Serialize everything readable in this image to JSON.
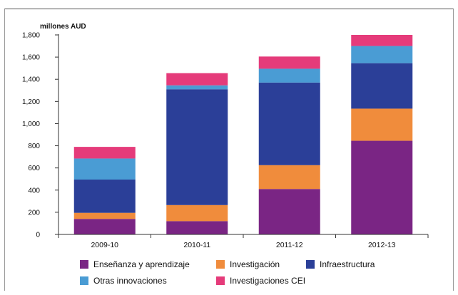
{
  "chart_data": {
    "type": "bar",
    "stacked": true,
    "unit_label": "millones AUD",
    "categories": [
      "2009-10",
      "2010-11",
      "2011-12",
      "2012-13"
    ],
    "series": [
      {
        "name": "Enseñanza y aprendizaje",
        "color": "#7a2584",
        "values": [
          140,
          120,
          410,
          845
        ]
      },
      {
        "name": "Investigación",
        "color": "#f08c3c",
        "values": [
          55,
          145,
          215,
          290
        ]
      },
      {
        "name": "Infraestructura",
        "color": "#2b3f98",
        "values": [
          300,
          1045,
          745,
          410
        ]
      },
      {
        "name": "Otras innovaciones",
        "color": "#4a9cd4",
        "values": [
          190,
          35,
          125,
          155
        ]
      },
      {
        "name": "Investigaciones CEI",
        "color": "#e53b7a",
        "values": [
          105,
          110,
          110,
          100
        ]
      }
    ],
    "yticks": [
      "0",
      "200",
      "400",
      "600",
      "800",
      "1,000",
      "1,200",
      "1,400",
      "1,600",
      "1,800"
    ],
    "ylim": [
      0,
      1800
    ],
    "grid": false,
    "legend_position": "bottom"
  }
}
